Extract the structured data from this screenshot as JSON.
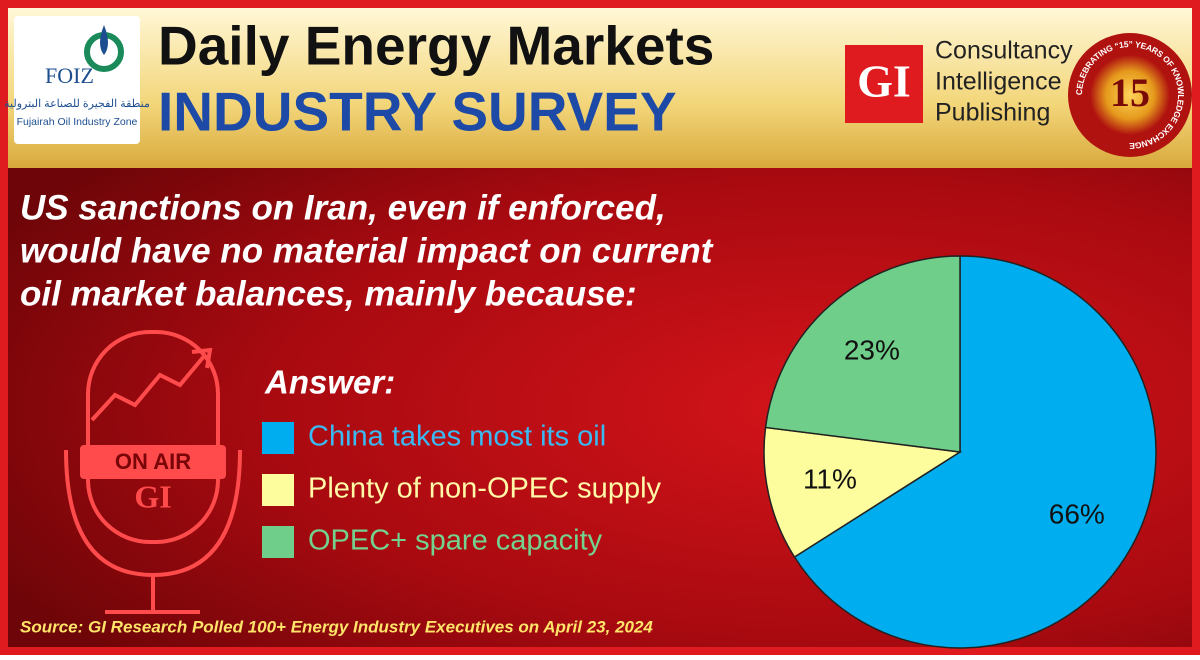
{
  "header": {
    "title": "Daily Energy Markets",
    "subtitle": "INDUSTRY SURVEY",
    "left_logo": {
      "name": "FOIZ",
      "arabic": "منطقة الفجيرة للصناعة البترولية",
      "english": "Fujairah Oil Industry Zone"
    },
    "right_logo": {
      "mark": "GI",
      "lines": [
        "Consultancy",
        "Intelligence",
        "Publishing"
      ]
    },
    "badge": {
      "number": "15",
      "ring": "CELEBRATING “15” YEARS OF KNOWLEDGE EXCHANGE"
    }
  },
  "question": [
    "US sanctions on Iran, even if enforced,",
    "would have no material impact on current",
    "oil market balances, mainly because:"
  ],
  "microphone": {
    "sign": "ON AIR",
    "mark": "GI"
  },
  "legend_title": "Answer:",
  "chart_data": {
    "type": "pie",
    "categories": [
      "China takes most its oil",
      "Plenty of non-OPEC supply",
      "OPEC+ spare capacity"
    ],
    "values": [
      66,
      11,
      23
    ],
    "value_labels": [
      "66%",
      "11%",
      "23%"
    ],
    "colors": [
      "#00aeef",
      "#fdfd9d",
      "#6fcf8a"
    ],
    "legend_text_colors": [
      "#3ab9f2",
      "#fff9a8",
      "#74d28f"
    ]
  },
  "source": "Source: GI Research Polled 100+ Energy Industry Executives on April 23, 2024"
}
